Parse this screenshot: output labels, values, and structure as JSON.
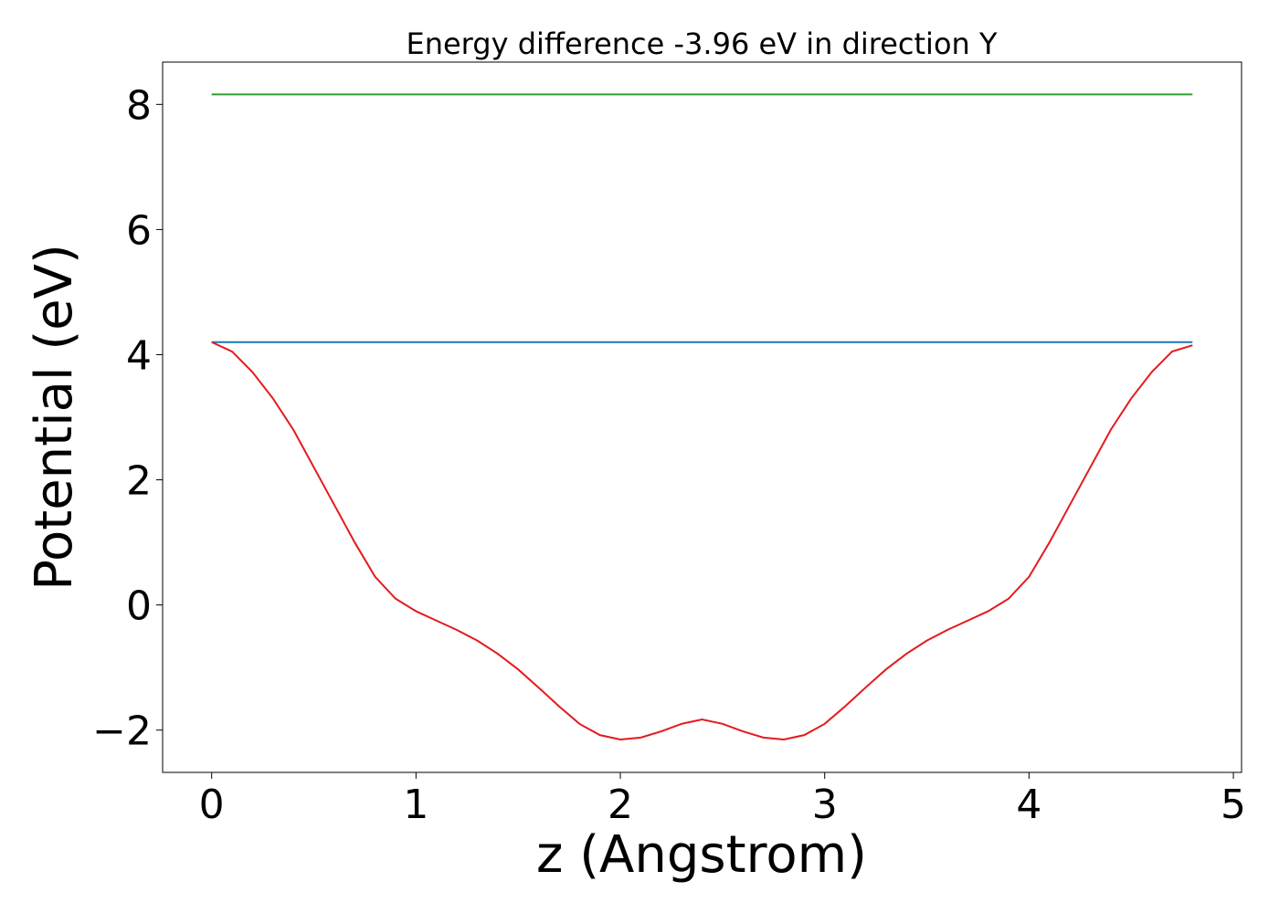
{
  "chart_data": {
    "type": "line",
    "title": "Energy difference -3.96 eV in direction Y",
    "xlabel": "z (Angstrom)",
    "ylabel": "Potential (eV)",
    "x": [
      0,
      0.1,
      0.2,
      0.3,
      0.4,
      0.5,
      0.6,
      0.7,
      0.8,
      0.9,
      1.0,
      1.1,
      1.2,
      1.3,
      1.4,
      1.5,
      1.6,
      1.7,
      1.8,
      1.9,
      2.0,
      2.1,
      2.2,
      2.3,
      2.4,
      2.5,
      2.6,
      2.7,
      2.8,
      2.9,
      3.0,
      3.1,
      3.2,
      3.3,
      3.4,
      3.5,
      3.6,
      3.7,
      3.8,
      3.9,
      4.0,
      4.1,
      4.2,
      4.3,
      4.4,
      4.5,
      4.6,
      4.7,
      4.8
    ],
    "series": [
      {
        "color": "#2ca02c",
        "values": [
          8.16,
          8.16,
          8.16,
          8.16,
          8.16,
          8.16,
          8.16,
          8.16,
          8.16,
          8.16,
          8.16,
          8.16,
          8.16,
          8.16,
          8.16,
          8.16,
          8.16,
          8.16,
          8.16,
          8.16,
          8.16,
          8.16,
          8.16,
          8.16,
          8.16,
          8.16,
          8.16,
          8.16,
          8.16,
          8.16,
          8.16,
          8.16,
          8.16,
          8.16,
          8.16,
          8.16,
          8.16,
          8.16,
          8.16,
          8.16,
          8.16,
          8.16,
          8.16,
          8.16,
          8.16,
          8.16,
          8.16,
          8.16,
          8.16
        ]
      },
      {
        "color": "#1f77b4",
        "values": [
          4.2,
          4.2,
          4.2,
          4.2,
          4.2,
          4.2,
          4.2,
          4.2,
          4.2,
          4.2,
          4.2,
          4.2,
          4.2,
          4.2,
          4.2,
          4.2,
          4.2,
          4.2,
          4.2,
          4.2,
          4.2,
          4.2,
          4.2,
          4.2,
          4.2,
          4.2,
          4.2,
          4.2,
          4.2,
          4.2,
          4.2,
          4.2,
          4.2,
          4.2,
          4.2,
          4.2,
          4.2,
          4.2,
          4.2,
          4.2,
          4.2,
          4.2,
          4.2,
          4.2,
          4.2,
          4.2,
          4.2,
          4.2,
          4.2
        ]
      },
      {
        "color": "#e41a1c",
        "values": [
          4.2,
          4.05,
          3.72,
          3.3,
          2.8,
          2.2,
          1.6,
          1.0,
          0.45,
          0.1,
          -0.1,
          -0.25,
          -0.4,
          -0.57,
          -0.78,
          -1.03,
          -1.32,
          -1.62,
          -1.9,
          -2.08,
          -2.15,
          -2.12,
          -2.02,
          -1.9,
          -1.83,
          -1.9,
          -2.02,
          -2.12,
          -2.15,
          -2.08,
          -1.9,
          -1.62,
          -1.32,
          -1.03,
          -0.78,
          -0.57,
          -0.4,
          -0.25,
          -0.1,
          0.1,
          0.45,
          1.0,
          1.6,
          2.2,
          2.8,
          3.3,
          3.72,
          4.05,
          4.15
        ]
      }
    ],
    "xlim": [
      -0.24,
      5.04
    ],
    "ylim": [
      -2.676,
      8.676
    ],
    "xticks": [
      0,
      1,
      2,
      3,
      4,
      5
    ],
    "yticks": [
      {
        "value": -2,
        "label": "−2"
      },
      0,
      2,
      4,
      6,
      8
    ],
    "grid": false
  }
}
